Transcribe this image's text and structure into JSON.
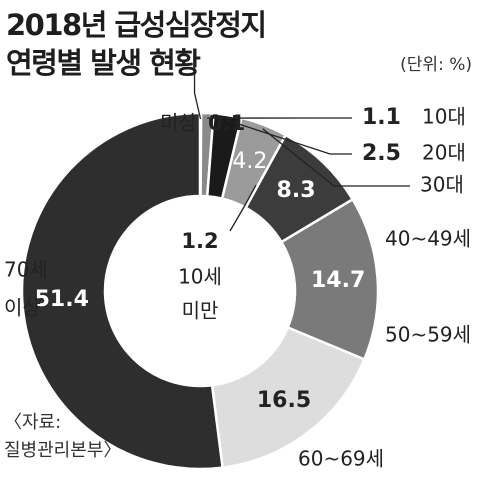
{
  "title_line1": "2018년 급성심장정지",
  "title_line2": "연령별 발생 현황",
  "unit": "(단위: %)",
  "source_line1": "〈자료:",
  "source_line2": "질병관리본부〉",
  "chart_data": {
    "type": "pie",
    "title": "2018년 급성심장정지 연령별 발생 현황",
    "unit": "%",
    "legend": "none",
    "start_angle_deg": 0,
    "direction": "clockwise",
    "slices": [
      {
        "label": "미상",
        "value": 0.1,
        "value_text": "0.1",
        "color": "#555555"
      },
      {
        "label": "10대",
        "value": 1.1,
        "value_text": "1.1",
        "color": "#8a8a8a"
      },
      {
        "label": "20대",
        "value": 2.5,
        "value_text": "2.5",
        "color": "#1a1a1a"
      },
      {
        "label": "30대",
        "value": 4.2,
        "value_text": "4.2",
        "color": "#9b9b9b"
      },
      {
        "label": "40~49세",
        "value": 8.3,
        "value_text": "8.3",
        "color": "#3c3c3c"
      },
      {
        "label": "50~59세",
        "value": 14.7,
        "value_text": "14.7",
        "color": "#7a7a7a"
      },
      {
        "label": "60~69세",
        "value": 16.5,
        "value_text": "16.5",
        "color": "#dddddd"
      },
      {
        "label": "70세 이상",
        "value": 51.4,
        "value_text": "51.4",
        "color": "#2e2e2e"
      }
    ],
    "center": {
      "value_text": "1.2",
      "label_line1": "10세",
      "label_line2": "미만"
    }
  }
}
